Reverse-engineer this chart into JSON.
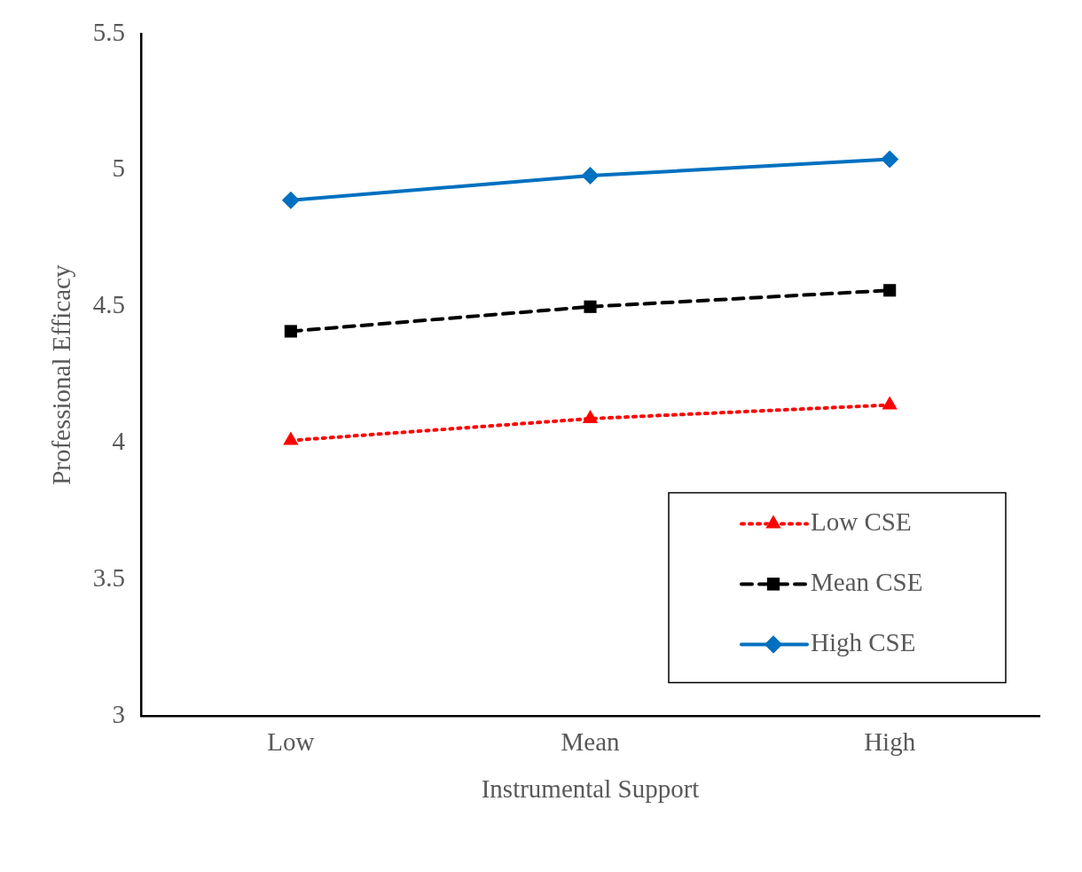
{
  "chart_data": {
    "type": "line",
    "xlabel": "Instrumental Support",
    "ylabel": "Professional Efficacy",
    "categories": [
      "Low",
      "Mean",
      "High"
    ],
    "series": [
      {
        "name": "Low CSE",
        "color": "#ff0000",
        "values": [
          4.01,
          4.09,
          4.14
        ],
        "marker": "triangle",
        "line_style": "dotted"
      },
      {
        "name": "Mean CSE",
        "color": "#000000",
        "values": [
          4.41,
          4.5,
          4.56
        ],
        "marker": "square",
        "line_style": "dashed"
      },
      {
        "name": "High CSE",
        "color": "#0070c0",
        "values": [
          4.89,
          4.98,
          5.04
        ],
        "marker": "diamond",
        "line_style": "solid"
      }
    ],
    "ylim": [
      3,
      5.5
    ],
    "yticks": [
      3,
      3.5,
      4,
      4.5,
      5,
      5.5
    ],
    "grid": false,
    "legend": "bottom right"
  }
}
